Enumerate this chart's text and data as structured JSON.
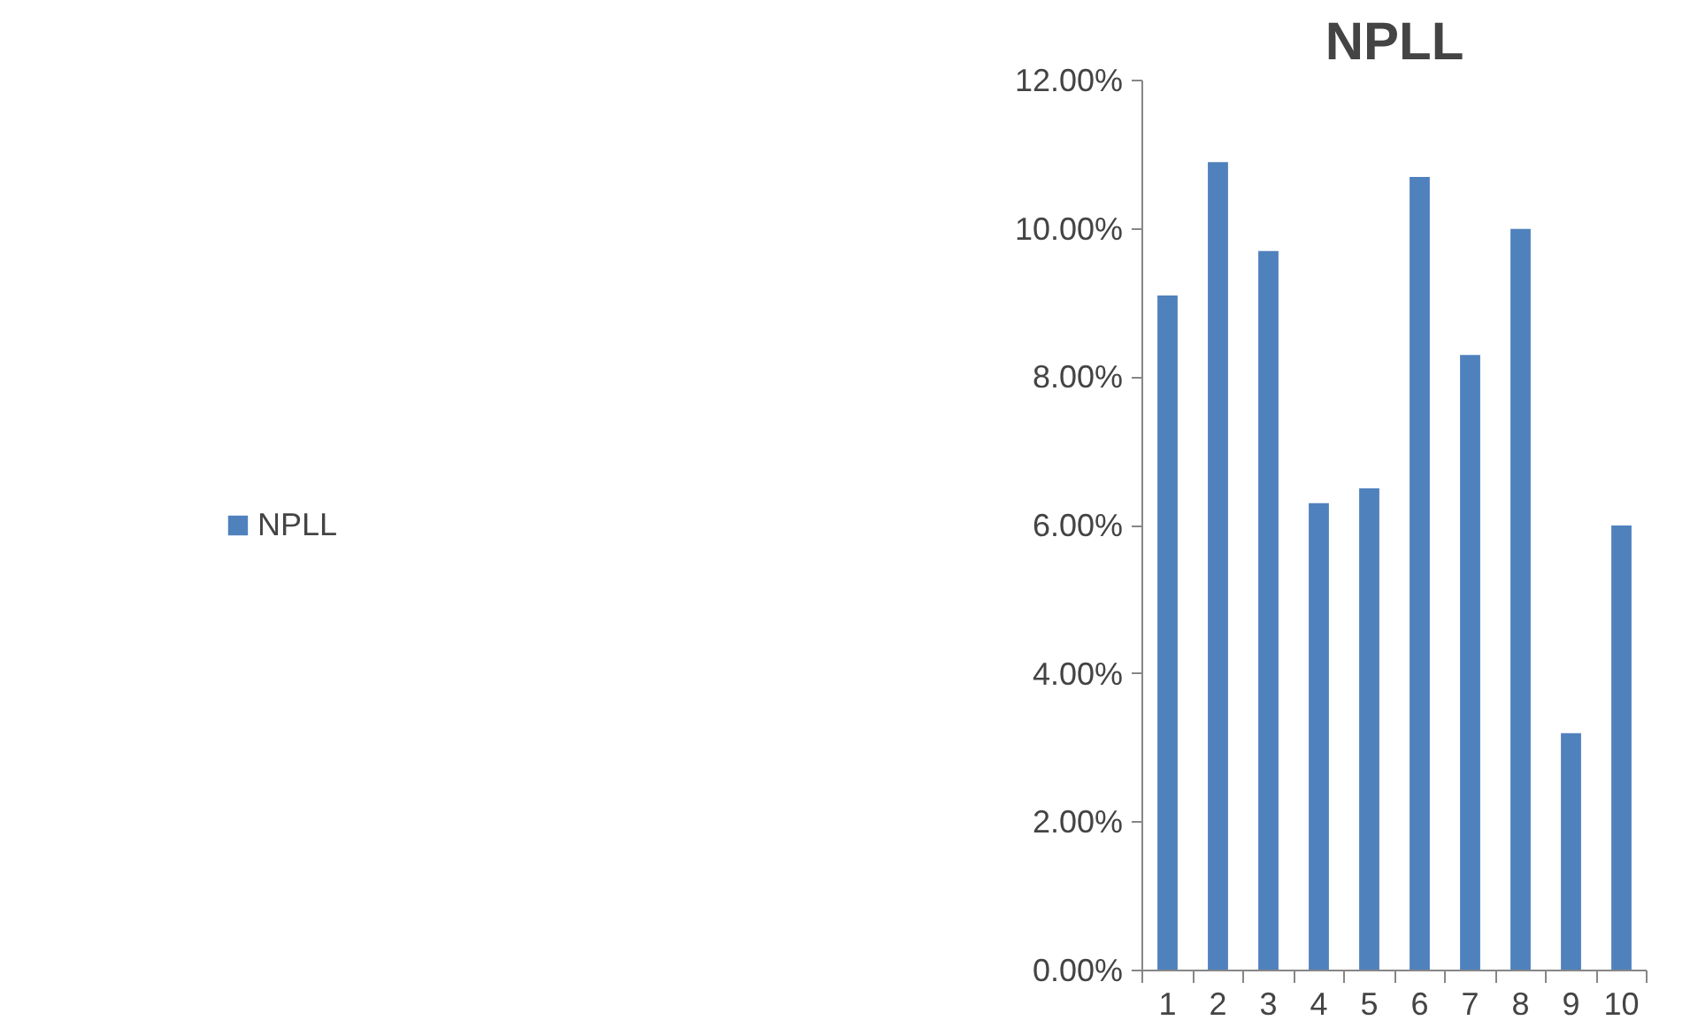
{
  "chart_data": {
    "type": "bar",
    "title": "NPLL",
    "categories": [
      "1",
      "2",
      "3",
      "4",
      "5",
      "6",
      "7",
      "8",
      "9",
      "10"
    ],
    "series": [
      {
        "name": "NPLL",
        "color": "#4f81bd",
        "values": [
          9.1,
          10.9,
          9.7,
          6.3,
          6.5,
          10.7,
          8.3,
          10.0,
          3.2,
          6.0
        ]
      }
    ],
    "ylim": [
      0,
      12
    ],
    "yticks": [
      {
        "value": 0,
        "label": "0.00%"
      },
      {
        "value": 2,
        "label": "2.00%"
      },
      {
        "value": 4,
        "label": "4.00%"
      },
      {
        "value": 6,
        "label": "6.00%"
      },
      {
        "value": 8,
        "label": "8.00%"
      },
      {
        "value": 10,
        "label": "10.00%"
      },
      {
        "value": 12,
        "label": "12.00%"
      }
    ],
    "grid": false,
    "legend": "left"
  }
}
